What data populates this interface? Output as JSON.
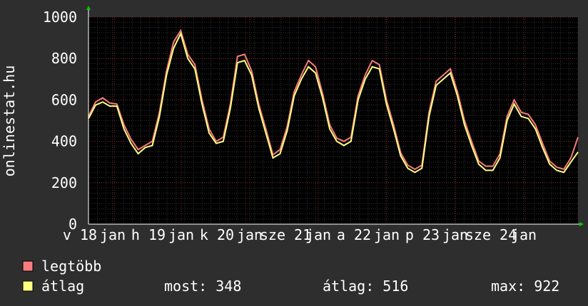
{
  "chart_data": {
    "type": "line",
    "ylabel": "onlinestat.hu",
    "ylim": [
      0,
      1000
    ],
    "yticks": [
      0,
      200,
      400,
      600,
      800,
      1000
    ],
    "grid": true,
    "xlabels": [
      "v 18",
      "jan",
      "h 19",
      "jan",
      "k 20",
      "jan",
      "sze 21",
      "jan",
      "a 22",
      "jan",
      "p 23",
      "jan",
      "sze 24",
      "jan"
    ],
    "series": [
      {
        "name": "legtöbb",
        "color": "#f87c7c",
        "values": [
          520,
          590,
          610,
          585,
          580,
          480,
          410,
          360,
          380,
          400,
          540,
          740,
          880,
          935,
          820,
          770,
          600,
          460,
          400,
          420,
          580,
          810,
          820,
          740,
          580,
          460,
          335,
          360,
          470,
          640,
          720,
          790,
          760,
          630,
          480,
          415,
          400,
          420,
          620,
          720,
          790,
          770,
          600,
          480,
          345,
          285,
          265,
          285,
          540,
          690,
          720,
          750,
          640,
          500,
          400,
          305,
          280,
          280,
          340,
          520,
          600,
          540,
          530,
          480,
          390,
          305,
          275,
          265,
          320,
          420
        ]
      },
      {
        "name": "átlag",
        "color": "#ffff80",
        "values": [
          510,
          575,
          590,
          570,
          570,
          460,
          390,
          340,
          370,
          380,
          520,
          720,
          850,
          920,
          800,
          750,
          580,
          440,
          390,
          400,
          560,
          780,
          790,
          720,
          560,
          440,
          320,
          340,
          450,
          620,
          700,
          760,
          730,
          610,
          460,
          400,
          380,
          400,
          600,
          700,
          760,
          750,
          580,
          460,
          330,
          270,
          250,
          270,
          520,
          670,
          700,
          730,
          620,
          480,
          380,
          290,
          260,
          260,
          320,
          500,
          580,
          520,
          510,
          460,
          370,
          290,
          260,
          250,
          300,
          348
        ]
      }
    ],
    "stats": [
      "most: 348",
      "átlag: 516",
      "max: 922"
    ]
  }
}
